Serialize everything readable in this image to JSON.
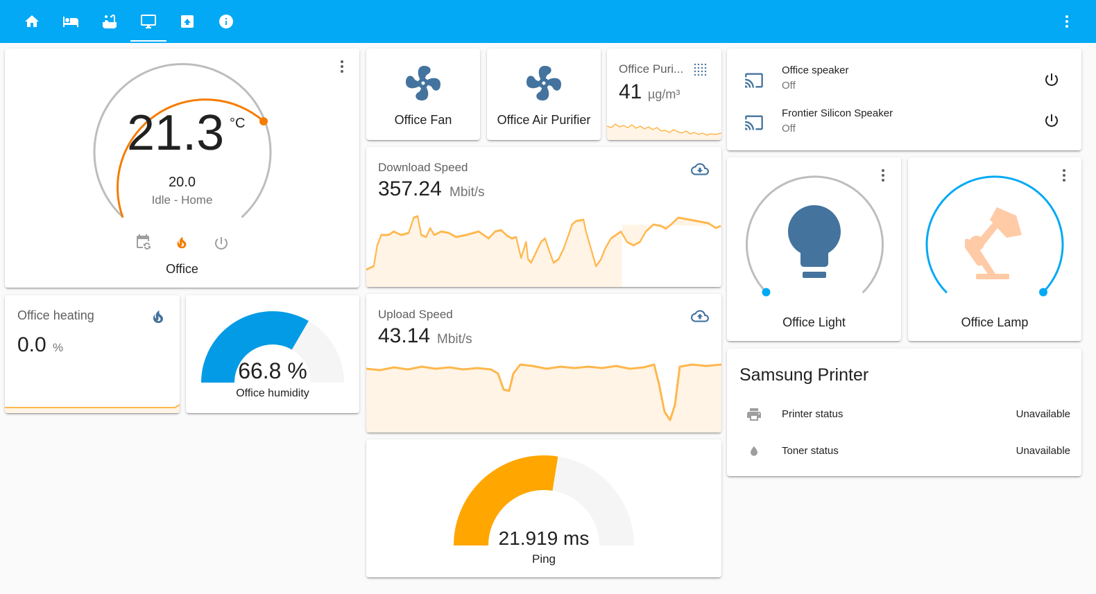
{
  "nav": {
    "tabs": [
      {
        "icon": "home-icon"
      },
      {
        "icon": "bed-icon"
      },
      {
        "icon": "bathtub-icon"
      },
      {
        "icon": "monitor-icon",
        "active": true
      },
      {
        "icon": "image-icon"
      },
      {
        "icon": "info-icon"
      }
    ],
    "menu_icon": "dots-vertical-icon"
  },
  "thermostat": {
    "current_temp": "21.3",
    "unit": "°C",
    "target_temp": "20.0",
    "status": "Idle - Home",
    "name": "Office",
    "accent_color": "#f57c00",
    "modes": [
      "calendar-sync-icon",
      "fire-icon",
      "power-icon"
    ]
  },
  "heating": {
    "name": "Office heating",
    "value": "0.0",
    "unit": "%",
    "icon": "fire-icon"
  },
  "humidity": {
    "value": "66.8 %",
    "name": "Office humidity",
    "level": 0.668,
    "color": "#039be5"
  },
  "fan": {
    "name": "Office Fan",
    "icon": "fan-icon"
  },
  "purifier": {
    "name": "Office Air Purifier",
    "icon": "fan-icon"
  },
  "pm25": {
    "name": "Office Puri...",
    "value": "41",
    "unit": "µg/m³",
    "icon": "dots-grid-icon"
  },
  "download": {
    "name": "Download Speed",
    "value": "357.24",
    "unit": "Mbit/s",
    "icon": "cloud-download-icon",
    "color": "#ffb74d"
  },
  "upload": {
    "name": "Upload Speed",
    "value": "43.14",
    "unit": "Mbit/s",
    "icon": "cloud-upload-icon",
    "color": "#ffb74d"
  },
  "ping": {
    "value": "21.919 ms",
    "name": "Ping",
    "level": 0.55,
    "color": "#ffa600"
  },
  "media": [
    {
      "name": "Office speaker",
      "state": "Off",
      "icon": "cast-icon"
    },
    {
      "name": "Frontier Silicon Speaker",
      "state": "Off",
      "icon": "cast-icon"
    }
  ],
  "light": {
    "name": "Office Light",
    "icon": "lightbulb-icon",
    "color": "#44739e"
  },
  "lamp": {
    "name": "Office Lamp",
    "icon": "desk-lamp-icon",
    "color": "#ffcaa6",
    "arc_color": "#03a9f4"
  },
  "printer": {
    "title": "Samsung Printer",
    "rows": [
      {
        "label": "Printer status",
        "value": "Unavailable",
        "icon": "printer-icon"
      },
      {
        "label": "Toner status",
        "value": "Unavailable",
        "icon": "water-icon"
      }
    ]
  }
}
